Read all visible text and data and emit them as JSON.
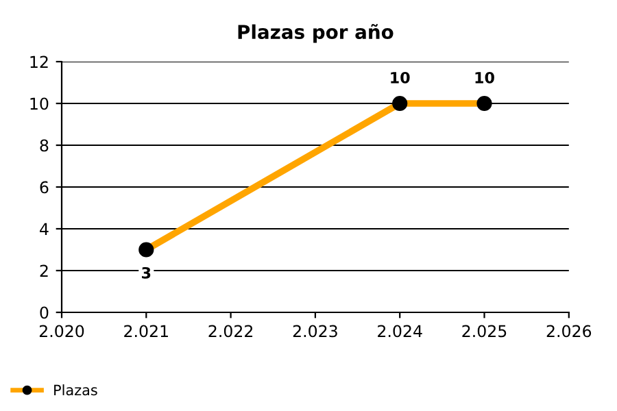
{
  "chart_data": {
    "type": "line",
    "title": "Plazas por año",
    "x": [
      2021,
      2024,
      2025
    ],
    "series": [
      {
        "name": "Plazas",
        "color": "#ffa500",
        "values": [
          3,
          10,
          10
        ]
      }
    ],
    "xlim": [
      2020,
      2026
    ],
    "xticks": [
      {
        "value": 2020,
        "label": "2.020"
      },
      {
        "value": 2021,
        "label": "2.021"
      },
      {
        "value": 2022,
        "label": "2.022"
      },
      {
        "value": 2023,
        "label": "2.023"
      },
      {
        "value": 2024,
        "label": "2.024"
      },
      {
        "value": 2025,
        "label": "2.025"
      },
      {
        "value": 2026,
        "label": "2.026"
      }
    ],
    "ylim": [
      0,
      12
    ],
    "yticks": [
      0,
      2,
      4,
      6,
      8,
      10,
      12
    ],
    "grid": "y",
    "legend": "bottom left",
    "marker": "circle",
    "line_style": "solid",
    "data_labels": true
  }
}
